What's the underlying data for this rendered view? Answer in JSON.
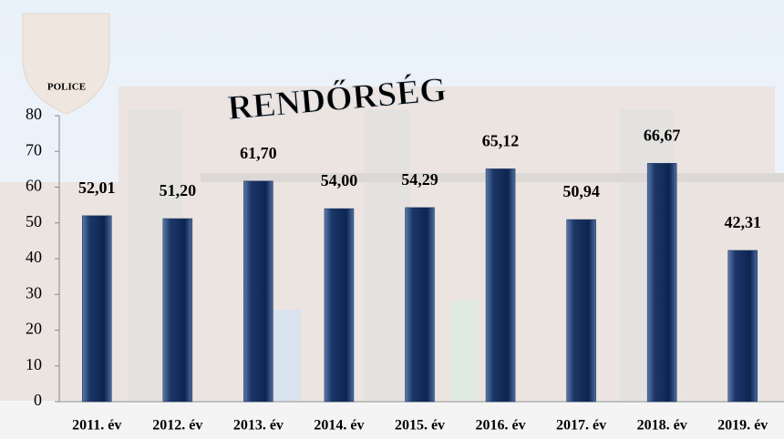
{
  "chart_data": {
    "type": "bar",
    "categories": [
      "2011. év",
      "2012. év",
      "2013. év",
      "2014. év",
      "2015. év",
      "2016. év",
      "2017. év",
      "2018. év",
      "2019. év"
    ],
    "values": [
      52.01,
      51.2,
      61.7,
      54.0,
      54.29,
      65.12,
      50.94,
      66.67,
      42.31
    ],
    "value_labels": [
      "52,01",
      "51,20",
      "61,70",
      "54,00",
      "54,29",
      "65,12",
      "50,94",
      "66,67",
      "42,31"
    ],
    "color": "#14305e",
    "ylim": [
      0,
      80
    ],
    "yticks": [
      0,
      10,
      20,
      30,
      40,
      50,
      60,
      70,
      80
    ],
    "grid": false
  },
  "background": {
    "building_sign": "RENDŐRSÉG",
    "badge_text": "POLICE"
  }
}
